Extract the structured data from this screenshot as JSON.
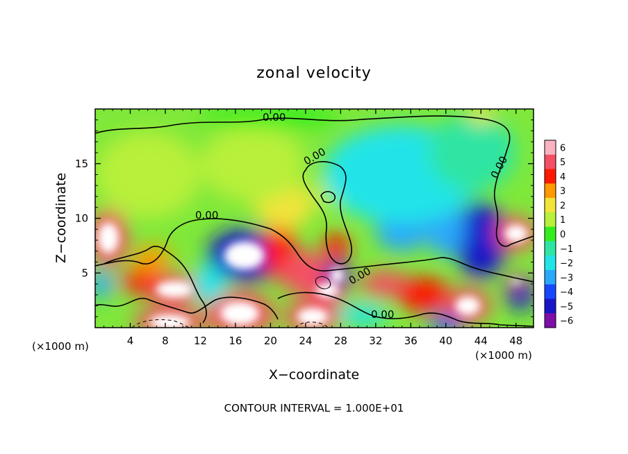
{
  "chart_data": {
    "type": "heatmap",
    "title": "zonal velocity",
    "xlabel": "X−coordinate",
    "ylabel": "Z−coordinate",
    "x_unit_left": "(×1000 m)",
    "x_unit_right": "(×1000 m)",
    "footer": "CONTOUR INTERVAL = 1.000E+01",
    "xlim": [
      0,
      50
    ],
    "ylim": [
      0,
      20
    ],
    "x_ticks": [
      4,
      8,
      12,
      16,
      20,
      24,
      28,
      32,
      36,
      40,
      44,
      48
    ],
    "y_ticks": [
      5,
      10,
      15
    ],
    "colorbar": {
      "ticks": [
        6,
        5,
        4,
        3,
        2,
        1,
        0,
        -1,
        -2,
        -3,
        -4,
        -5,
        -6
      ],
      "colors": [
        "#f9b3c0",
        "#f44f63",
        "#ff1800",
        "#ff9900",
        "#f2e43a",
        "#b8f03b",
        "#33ee1d",
        "#2fe5a3",
        "#21e4e8",
        "#2aa8fb",
        "#1747ff",
        "#1616c8",
        "#7d0ea7"
      ]
    },
    "contour_labels": [
      "0.00",
      "0.00",
      "0.00",
      "0.00",
      "0.00",
      "0.00"
    ],
    "blobs": [
      {
        "x": 1.5,
        "y": 8.2,
        "rx": 2.2,
        "ry": 2.6,
        "v": 6
      },
      {
        "x": 6.5,
        "y": 6.3,
        "rx": 2.3,
        "ry": 1.2,
        "v": 3
      },
      {
        "x": 9.0,
        "y": 3.5,
        "rx": 3.8,
        "ry": 1.4,
        "v": 6
      },
      {
        "x": 5.2,
        "y": 4.2,
        "rx": 2.5,
        "ry": 1.0,
        "v": 4
      },
      {
        "x": 0.7,
        "y": 4.0,
        "rx": 1.4,
        "ry": 1.3,
        "v": -3
      },
      {
        "x": 8.5,
        "y": 0.5,
        "rx": 4.2,
        "ry": 1.3,
        "v": 6.5
      },
      {
        "x": 17.0,
        "y": 6.6,
        "rx": 4.2,
        "ry": 2.4,
        "v": -6.5
      },
      {
        "x": 16.5,
        "y": 1.3,
        "rx": 4.0,
        "ry": 2.0,
        "v": 6.5
      },
      {
        "x": 21.0,
        "y": 7.0,
        "rx": 2.0,
        "ry": 2.6,
        "v": 4
      },
      {
        "x": 24.0,
        "y": 5.0,
        "rx": 3.0,
        "ry": 2.0,
        "v": 5.5
      },
      {
        "x": 26.5,
        "y": 3.4,
        "rx": 2.4,
        "ry": 1.2,
        "v": 6
      },
      {
        "x": 24.8,
        "y": 1.0,
        "rx": 3.2,
        "ry": 1.5,
        "v": 6.5
      },
      {
        "x": 27.6,
        "y": 4.8,
        "rx": 1.4,
        "ry": 1.2,
        "v": -6
      },
      {
        "x": 27.5,
        "y": 7.4,
        "rx": 1.5,
        "ry": 1.3,
        "v": 4
      },
      {
        "x": 26.6,
        "y": 12.5,
        "rx": 1.8,
        "ry": 1.6,
        "v": 1.5
      },
      {
        "x": 21.5,
        "y": 11.2,
        "rx": 3.4,
        "ry": 2.2,
        "v": 2.3
      },
      {
        "x": 33.0,
        "y": 4.0,
        "rx": 2.8,
        "ry": 1.2,
        "v": 5.5
      },
      {
        "x": 37.5,
        "y": 3.0,
        "rx": 3.0,
        "ry": 1.6,
        "v": 4
      },
      {
        "x": 42.5,
        "y": 2.0,
        "rx": 2.6,
        "ry": 1.6,
        "v": 6.5
      },
      {
        "x": 44.0,
        "y": 8.0,
        "rx": 3.0,
        "ry": 3.5,
        "v": -4.5
      },
      {
        "x": 40.0,
        "y": 9.0,
        "rx": 2.2,
        "ry": 2.5,
        "v": -3
      },
      {
        "x": 35.0,
        "y": 8.8,
        "rx": 3.0,
        "ry": 1.8,
        "v": -2.5
      },
      {
        "x": 48.0,
        "y": 8.6,
        "rx": 2.4,
        "ry": 1.5,
        "v": 6.5
      },
      {
        "x": 48.5,
        "y": 3.2,
        "rx": 1.6,
        "ry": 1.6,
        "v": -5
      },
      {
        "x": 48.0,
        "y": 4.2,
        "rx": 1.2,
        "ry": 0.4,
        "v": 6
      },
      {
        "x": 35.0,
        "y": 14.0,
        "rx": 9.0,
        "ry": 4.5,
        "v": -1.5
      },
      {
        "x": 43.0,
        "y": 16.0,
        "rx": 5.0,
        "ry": 3.5,
        "v": -1.3
      },
      {
        "x": 6.0,
        "y": 14.0,
        "rx": 6.0,
        "ry": 4.0,
        "v": 0.8
      },
      {
        "x": 18.0,
        "y": 15.0,
        "rx": 6.0,
        "ry": 3.5,
        "v": 1.2
      },
      {
        "x": 20.0,
        "y": 19.3,
        "rx": 8.0,
        "ry": 1.0,
        "v": 0.3
      },
      {
        "x": 13.0,
        "y": 4.0,
        "rx": 2.0,
        "ry": 1.8,
        "v": -1.5
      },
      {
        "x": 30.5,
        "y": 1.2,
        "rx": 3.0,
        "ry": 1.0,
        "v": -1.5
      },
      {
        "x": 44.0,
        "y": 19.5,
        "rx": 1.5,
        "ry": 0.8,
        "v": 2
      },
      {
        "x": 40.0,
        "y": 0.3,
        "rx": 2.0,
        "ry": 0.8,
        "v": -3.5
      }
    ]
  }
}
